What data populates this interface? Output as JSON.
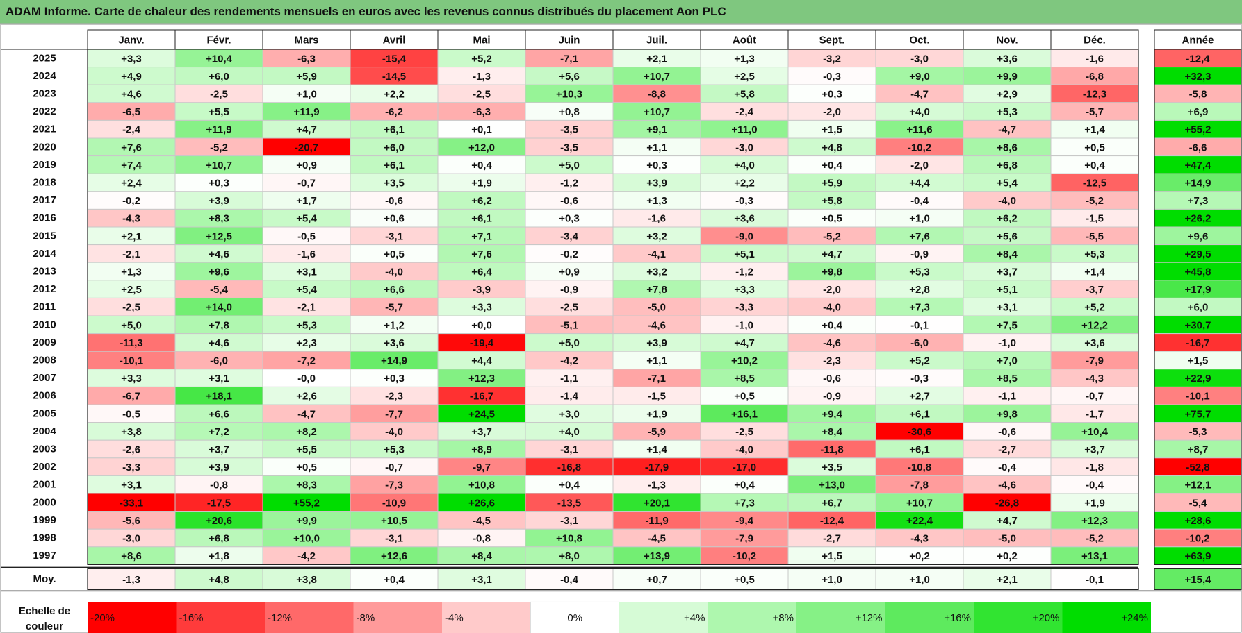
{
  "header": {
    "title": "ADAM Informe. Carte de chaleur des rendements mensuels en euros avec les revenus connus distribués du placement Aon PLC"
  },
  "chart_data": {
    "type": "heatmap",
    "title": "ADAM Informe. Carte de chaleur des rendements mensuels en euros avec les revenus connus distribués du placement Aon PLC",
    "months": [
      "Janv.",
      "Févr.",
      "Mars",
      "Avril",
      "Mai",
      "Juin",
      "Juil.",
      "Août",
      "Sept.",
      "Oct.",
      "Nov.",
      "Déc."
    ],
    "year_column_label": "Année",
    "average_row_label": "Moy.",
    "rows": [
      {
        "year": "2025",
        "values": [
          "+3,3",
          "+10,4",
          "-6,3",
          "-15,4",
          "+5,2",
          "-7,1",
          "+2,1",
          "+1,3",
          "-3,2",
          "-3,0",
          "+3,6",
          "-1,6"
        ],
        "annual": "-12,4"
      },
      {
        "year": "2024",
        "values": [
          "+4,9",
          "+6,0",
          "+5,9",
          "-14,5",
          "-1,3",
          "+5,6",
          "+10,7",
          "+2,5",
          "-0,3",
          "+9,0",
          "+9,9",
          "-6,8"
        ],
        "annual": "+32,3"
      },
      {
        "year": "2023",
        "values": [
          "+4,6",
          "-2,5",
          "+1,0",
          "+2,2",
          "-2,5",
          "+10,3",
          "-8,8",
          "+5,8",
          "+0,3",
          "-4,7",
          "+2,9",
          "-12,3"
        ],
        "annual": "-5,8"
      },
      {
        "year": "2022",
        "values": [
          "-6,5",
          "+5,5",
          "+11,9",
          "-6,2",
          "-6,3",
          "+0,8",
          "+10,7",
          "-2,4",
          "-2,0",
          "+4,0",
          "+5,3",
          "-5,7"
        ],
        "annual": "+6,9"
      },
      {
        "year": "2021",
        "values": [
          "-2,4",
          "+11,9",
          "+4,7",
          "+6,1",
          "+0,1",
          "-3,5",
          "+9,1",
          "+11,0",
          "+1,5",
          "+11,6",
          "-4,7",
          "+1,4"
        ],
        "annual": "+55,2"
      },
      {
        "year": "2020",
        "values": [
          "+7,6",
          "-5,2",
          "-20,7",
          "+6,0",
          "+12,0",
          "-3,5",
          "+1,1",
          "-3,0",
          "+4,8",
          "-10,2",
          "+8,6",
          "+0,5"
        ],
        "annual": "-6,6"
      },
      {
        "year": "2019",
        "values": [
          "+7,4",
          "+10,7",
          "+0,9",
          "+6,1",
          "+0,4",
          "+5,0",
          "+0,3",
          "+4,0",
          "+0,4",
          "-2,0",
          "+6,8",
          "+0,4"
        ],
        "annual": "+47,4"
      },
      {
        "year": "2018",
        "values": [
          "+2,4",
          "+0,3",
          "-0,7",
          "+3,5",
          "+1,9",
          "-1,2",
          "+3,9",
          "+2,2",
          "+5,9",
          "+4,4",
          "+5,4",
          "-12,5"
        ],
        "annual": "+14,9"
      },
      {
        "year": "2017",
        "values": [
          "-0,2",
          "+3,9",
          "+1,7",
          "-0,6",
          "+6,2",
          "-0,6",
          "+1,3",
          "-0,3",
          "+5,8",
          "-0,4",
          "-4,0",
          "-5,2"
        ],
        "annual": "+7,3"
      },
      {
        "year": "2016",
        "values": [
          "-4,3",
          "+8,3",
          "+5,4",
          "+0,6",
          "+6,1",
          "+0,3",
          "-1,6",
          "+3,6",
          "+0,5",
          "+1,0",
          "+6,2",
          "-1,5"
        ],
        "annual": "+26,2"
      },
      {
        "year": "2015",
        "values": [
          "+2,1",
          "+12,5",
          "-0,5",
          "-3,1",
          "+7,1",
          "-3,4",
          "+3,2",
          "-9,0",
          "-5,2",
          "+7,6",
          "+5,6",
          "-5,5"
        ],
        "annual": "+9,6"
      },
      {
        "year": "2014",
        "values": [
          "-2,1",
          "+4,6",
          "-1,6",
          "+0,5",
          "+7,6",
          "-0,2",
          "-4,1",
          "+5,1",
          "+4,7",
          "-0,9",
          "+8,4",
          "+5,3"
        ],
        "annual": "+29,5"
      },
      {
        "year": "2013",
        "values": [
          "+1,3",
          "+9,6",
          "+3,1",
          "-4,0",
          "+6,4",
          "+0,9",
          "+3,2",
          "-1,2",
          "+9,8",
          "+5,3",
          "+3,7",
          "+1,4"
        ],
        "annual": "+45,8"
      },
      {
        "year": "2012",
        "values": [
          "+2,5",
          "-5,4",
          "+5,4",
          "+6,6",
          "-3,9",
          "-0,9",
          "+7,8",
          "+3,3",
          "-2,0",
          "+2,8",
          "+5,1",
          "-3,7"
        ],
        "annual": "+17,9"
      },
      {
        "year": "2011",
        "values": [
          "-2,5",
          "+14,0",
          "-2,1",
          "-5,7",
          "+3,3",
          "-2,5",
          "-5,0",
          "-3,3",
          "-4,0",
          "+7,3",
          "+3,1",
          "+5,2"
        ],
        "annual": "+6,0"
      },
      {
        "year": "2010",
        "values": [
          "+5,0",
          "+7,8",
          "+5,3",
          "+1,2",
          "+0,0",
          "-5,1",
          "-4,6",
          "-1,0",
          "+0,4",
          "-0,1",
          "+7,5",
          "+12,2"
        ],
        "annual": "+30,7"
      },
      {
        "year": "2009",
        "values": [
          "-11,3",
          "+4,6",
          "+2,3",
          "+3,6",
          "-19,4",
          "+5,0",
          "+3,9",
          "+4,7",
          "-4,6",
          "-6,0",
          "-1,0",
          "+3,6"
        ],
        "annual": "-16,7"
      },
      {
        "year": "2008",
        "values": [
          "-10,1",
          "-6,0",
          "-7,2",
          "+14,9",
          "+4,4",
          "-4,2",
          "+1,1",
          "+10,2",
          "-2,3",
          "+5,2",
          "+7,0",
          "-7,9"
        ],
        "annual": "+1,5"
      },
      {
        "year": "2007",
        "values": [
          "+3,3",
          "+3,1",
          "-0,0",
          "+0,3",
          "+12,3",
          "-1,1",
          "-7,1",
          "+8,5",
          "-0,6",
          "-0,3",
          "+8,5",
          "-4,3"
        ],
        "annual": "+22,9"
      },
      {
        "year": "2006",
        "values": [
          "-6,7",
          "+18,1",
          "+2,6",
          "-2,3",
          "-16,7",
          "-1,4",
          "-1,5",
          "+0,5",
          "-0,9",
          "+2,7",
          "-1,1",
          "-0,7"
        ],
        "annual": "-10,1"
      },
      {
        "year": "2005",
        "values": [
          "-0,5",
          "+6,6",
          "-4,7",
          "-7,7",
          "+24,5",
          "+3,0",
          "+1,9",
          "+16,1",
          "+9,4",
          "+6,1",
          "+9,8",
          "-1,7"
        ],
        "annual": "+75,7"
      },
      {
        "year": "2004",
        "values": [
          "+3,8",
          "+7,2",
          "+8,2",
          "-4,0",
          "+3,7",
          "+4,0",
          "-5,9",
          "-2,5",
          "+8,4",
          "-30,6",
          "-0,6",
          "+10,4"
        ],
        "annual": "-5,3"
      },
      {
        "year": "2003",
        "values": [
          "-2,6",
          "+3,7",
          "+5,5",
          "+5,3",
          "+8,9",
          "-3,1",
          "+1,4",
          "-4,0",
          "-11,8",
          "+6,1",
          "-2,7",
          "+3,7"
        ],
        "annual": "+8,7"
      },
      {
        "year": "2002",
        "values": [
          "-3,3",
          "+3,9",
          "+0,5",
          "-0,7",
          "-9,7",
          "-16,8",
          "-17,9",
          "-17,0",
          "+3,5",
          "-10,8",
          "-0,4",
          "-1,8"
        ],
        "annual": "-52,8"
      },
      {
        "year": "2001",
        "values": [
          "+3,1",
          "-0,8",
          "+8,3",
          "-7,3",
          "+10,8",
          "+0,4",
          "-1,3",
          "+0,4",
          "+13,0",
          "-7,8",
          "-4,6",
          "-0,4"
        ],
        "annual": "+12,1"
      },
      {
        "year": "2000",
        "values": [
          "-33,1",
          "-17,5",
          "+55,2",
          "-10,9",
          "+26,6",
          "-13,5",
          "+20,1",
          "+7,3",
          "+6,7",
          "+10,7",
          "-26,8",
          "+1,9"
        ],
        "annual": "-5,4"
      },
      {
        "year": "1999",
        "values": [
          "-5,6",
          "+20,6",
          "+9,9",
          "+10,5",
          "-4,5",
          "-3,1",
          "-11,9",
          "-9,4",
          "-12,4",
          "+22,4",
          "+4,7",
          "+12,3"
        ],
        "annual": "+28,6"
      },
      {
        "year": "1998",
        "values": [
          "-3,0",
          "+6,8",
          "+10,0",
          "-3,1",
          "-0,8",
          "+10,8",
          "-4,5",
          "-7,9",
          "-2,7",
          "-4,3",
          "-5,0",
          "-5,2"
        ],
        "annual": "-10,2"
      },
      {
        "year": "1997",
        "values": [
          "+8,6",
          "+1,8",
          "-4,2",
          "+12,6",
          "+8,4",
          "+8,0",
          "+13,9",
          "-10,2",
          "+1,5",
          "+0,2",
          "+0,2",
          "+13,1"
        ],
        "annual": "+63,9"
      }
    ],
    "average": {
      "values": [
        "-1,3",
        "+4,8",
        "+3,8",
        "+0,4",
        "+3,1",
        "-0,4",
        "+0,7",
        "+0,5",
        "+1,0",
        "+1,0",
        "+2,1",
        "-0,1"
      ],
      "annual": "+15,4"
    },
    "color_scale": {
      "label_line1": "Echelle de",
      "label_line2": "couleur",
      "stops": [
        {
          "value": -20,
          "label": "-20%",
          "color": "#ff0000"
        },
        {
          "value": -16,
          "label": "-16%",
          "color": "#ff3b3b"
        },
        {
          "value": -12,
          "label": "-12%",
          "color": "#ff6969"
        },
        {
          "value": -8,
          "label": "-8%",
          "color": "#ff9a9a"
        },
        {
          "value": -4,
          "label": "-4%",
          "color": "#ffcaca"
        },
        {
          "value": 0,
          "label": "0%",
          "color": "#ffffff"
        },
        {
          "value": 4,
          "label": "+4%",
          "color": "#d6fbd6"
        },
        {
          "value": 8,
          "label": "+8%",
          "color": "#aef7ae"
        },
        {
          "value": 12,
          "label": "+12%",
          "color": "#86f186"
        },
        {
          "value": 16,
          "label": "+16%",
          "color": "#5eea5e"
        },
        {
          "value": 20,
          "label": "+20%",
          "color": "#31e431"
        },
        {
          "value": 24,
          "label": "+24%",
          "color": "#00dd00"
        }
      ]
    }
  }
}
